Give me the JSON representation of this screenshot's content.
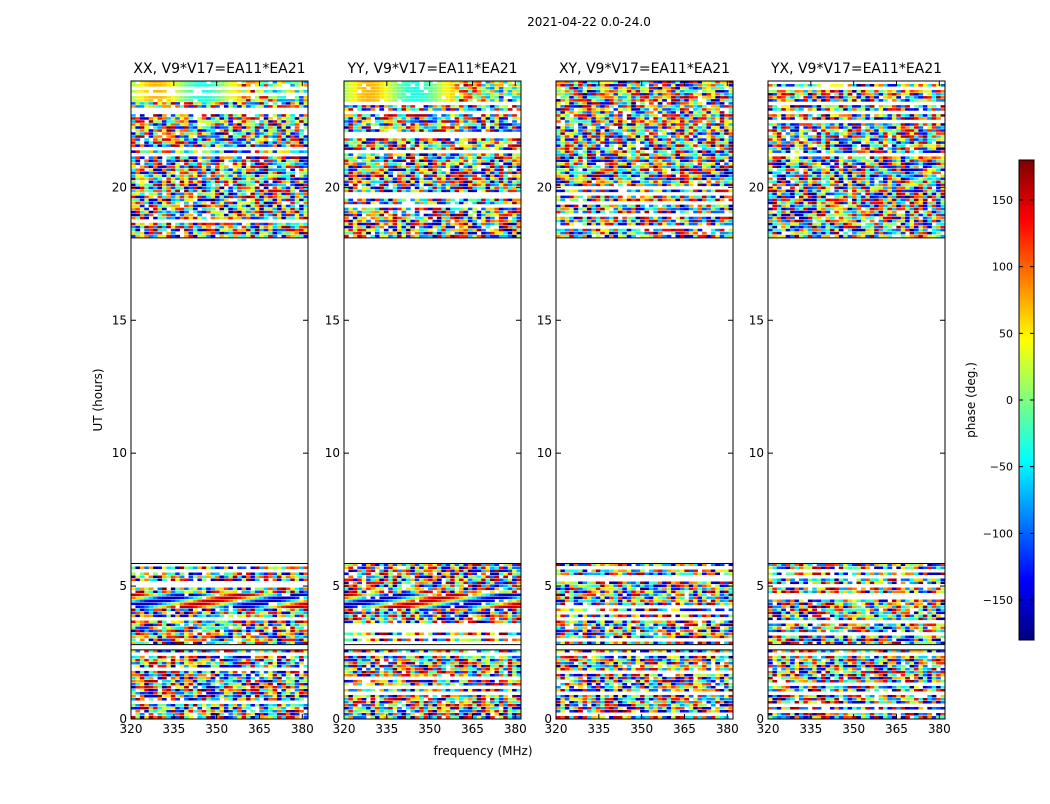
{
  "figure_title": "2021-04-22 0.0-24.0",
  "chart_data": {
    "type": "heatmap",
    "xlabel": "frequency (MHz)",
    "ylabel": "UT (hours)",
    "xlim": [
      320,
      382
    ],
    "ylim": [
      0,
      24
    ],
    "x_ticks": [
      320,
      335,
      350,
      365,
      380
    ],
    "y_ticks": [
      0,
      5,
      10,
      15,
      20
    ],
    "panels": [
      {
        "title": "XX, V9*V17=EA11*EA21",
        "pol": "XX"
      },
      {
        "title": "YY, V9*V17=EA11*EA21",
        "pol": "YY"
      },
      {
        "title": "XY, V9*V17=EA11*EA21",
        "pol": "XY"
      },
      {
        "title": "YX, V9*V17=EA11*EA21",
        "pol": "YX"
      }
    ],
    "data_blocks_ut": [
      [
        0.0,
        2.6
      ],
      [
        2.8,
        5.85
      ],
      [
        18.1,
        24.0
      ]
    ],
    "colorbar": {
      "label": "phase (deg.)",
      "range": [
        -180,
        180
      ],
      "ticks": [
        -150,
        -100,
        -50,
        0,
        50,
        100,
        150
      ],
      "tick_labels": [
        "−150",
        "−100",
        "−50",
        "0",
        "50",
        "100",
        "150"
      ],
      "colormap": [
        "#00007f",
        "#0000ff",
        "#007fff",
        "#00ffff",
        "#7fff7f",
        "#ffff00",
        "#ff7f00",
        "#ff0000",
        "#7f0000"
      ]
    }
  }
}
